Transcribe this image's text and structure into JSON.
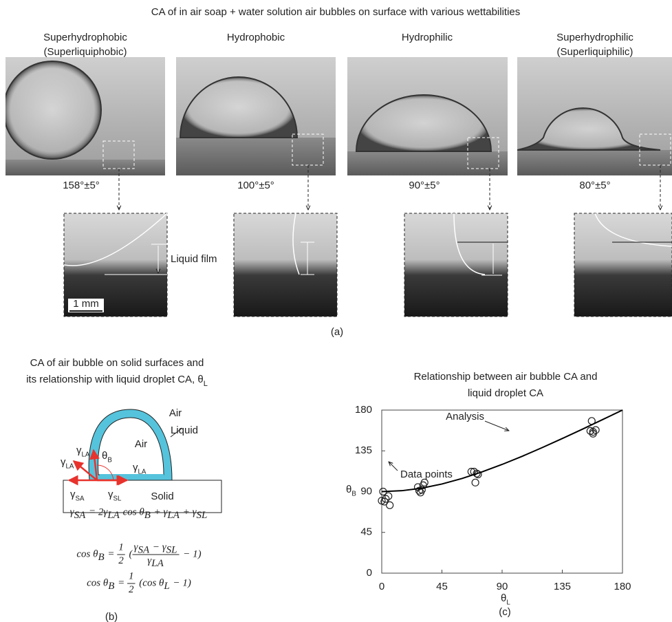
{
  "panel_a": {
    "title": "CA of in air soap + water solution air bubbles on surface with various wettabilities",
    "columns": [
      {
        "name": "Superhydrophobic",
        "subname": "(Superliquiphobic)",
        "angle": "158°±5°"
      },
      {
        "name": "Hydrophobic",
        "angle": "100°±5°"
      },
      {
        "name": "Hydrophilic",
        "angle": "90°±5°"
      },
      {
        "name": "Superhydrophilic",
        "subname": "(Superliquiphilic)",
        "angle": "80°±5°"
      }
    ],
    "film_label": "Liquid film",
    "scale_bar": "1 mm",
    "caption": "(a)"
  },
  "panel_b": {
    "title_line1": "CA of air bubble on solid surfaces and",
    "title_line2": {
      "text": "its relationship with liquid droplet CA, θ",
      "sub": "L"
    },
    "labels": [
      {
        "text": "Air"
      },
      {
        "text": "Liquid"
      },
      {
        "text": "Air"
      },
      {
        "text": "Solid"
      },
      {
        "text": "γ",
        "sub": "LA"
      },
      {
        "text": "γ",
        "sub": "LA"
      },
      {
        "text": "γ",
        "sub": "LA"
      },
      {
        "text": "θ",
        "sub": "B"
      },
      {
        "text": "γ",
        "sub": "SA"
      },
      {
        "text": "γ",
        "sub": "SL"
      }
    ],
    "equations": [
      [
        [
          "γ",
          "SA"
        ],
        " = 2",
        [
          "γ",
          "LA"
        ],
        " cos ",
        [
          "θ",
          "B"
        ],
        " + ",
        [
          "γ",
          "LA"
        ],
        " + ",
        [
          "γ",
          "SL"
        ]
      ],
      [
        "cos ",
        [
          "θ",
          "B"
        ],
        " = ",
        {
          "num": [
            "1"
          ],
          "den": [
            "2"
          ]
        },
        " (",
        {
          "num": [
            [
              "γ",
              "SA"
            ],
            " − ",
            [
              "γ",
              "SL"
            ]
          ],
          "den": [
            [
              "γ",
              "LA"
            ]
          ]
        },
        " − 1)"
      ],
      [
        "cos ",
        [
          "θ",
          "B"
        ],
        " = ",
        {
          "num": [
            "1"
          ],
          "den": [
            "2"
          ]
        },
        " (cos ",
        [
          "θ",
          "L"
        ],
        " − 1)"
      ]
    ],
    "caption": "(b)"
  },
  "chart_data": {
    "type": "scatter",
    "title": [
      "Relationship between air bubble CA and",
      "liquid droplet CA"
    ],
    "xlabel": {
      "text": "θ",
      "sub": "L"
    },
    "ylabel": {
      "text": "θ",
      "sub": "B"
    },
    "xlim": [
      0,
      180
    ],
    "ylim": [
      0,
      180
    ],
    "xticks": [
      0,
      45,
      90,
      135,
      180
    ],
    "yticks": [
      0,
      45,
      90,
      135,
      180
    ],
    "series": [
      {
        "name": "Data points",
        "type": "scatter",
        "color": "#222222",
        "x": [
          0,
          2,
          1,
          5,
          6,
          3,
          27,
          28,
          29,
          31,
          32,
          30,
          67,
          69,
          71,
          72,
          70,
          157,
          156,
          158,
          160,
          158
        ],
        "values": [
          80,
          79,
          90,
          85,
          75,
          82,
          95,
          91,
          89,
          97,
          100,
          92,
          112,
          112,
          110,
          109,
          100,
          168,
          157,
          154,
          158,
          156
        ]
      },
      {
        "name": "Analysis",
        "type": "line",
        "color": "#000000",
        "x": [
          0,
          15,
          30,
          45,
          60,
          75,
          90,
          105,
          120,
          135,
          150,
          165,
          180
        ],
        "values": [
          90,
          91,
          93.8,
          98.4,
          104.5,
          111.8,
          120,
          129,
          138.6,
          148.6,
          158.9,
          169.4,
          180
        ]
      }
    ],
    "caption": "(c)"
  }
}
